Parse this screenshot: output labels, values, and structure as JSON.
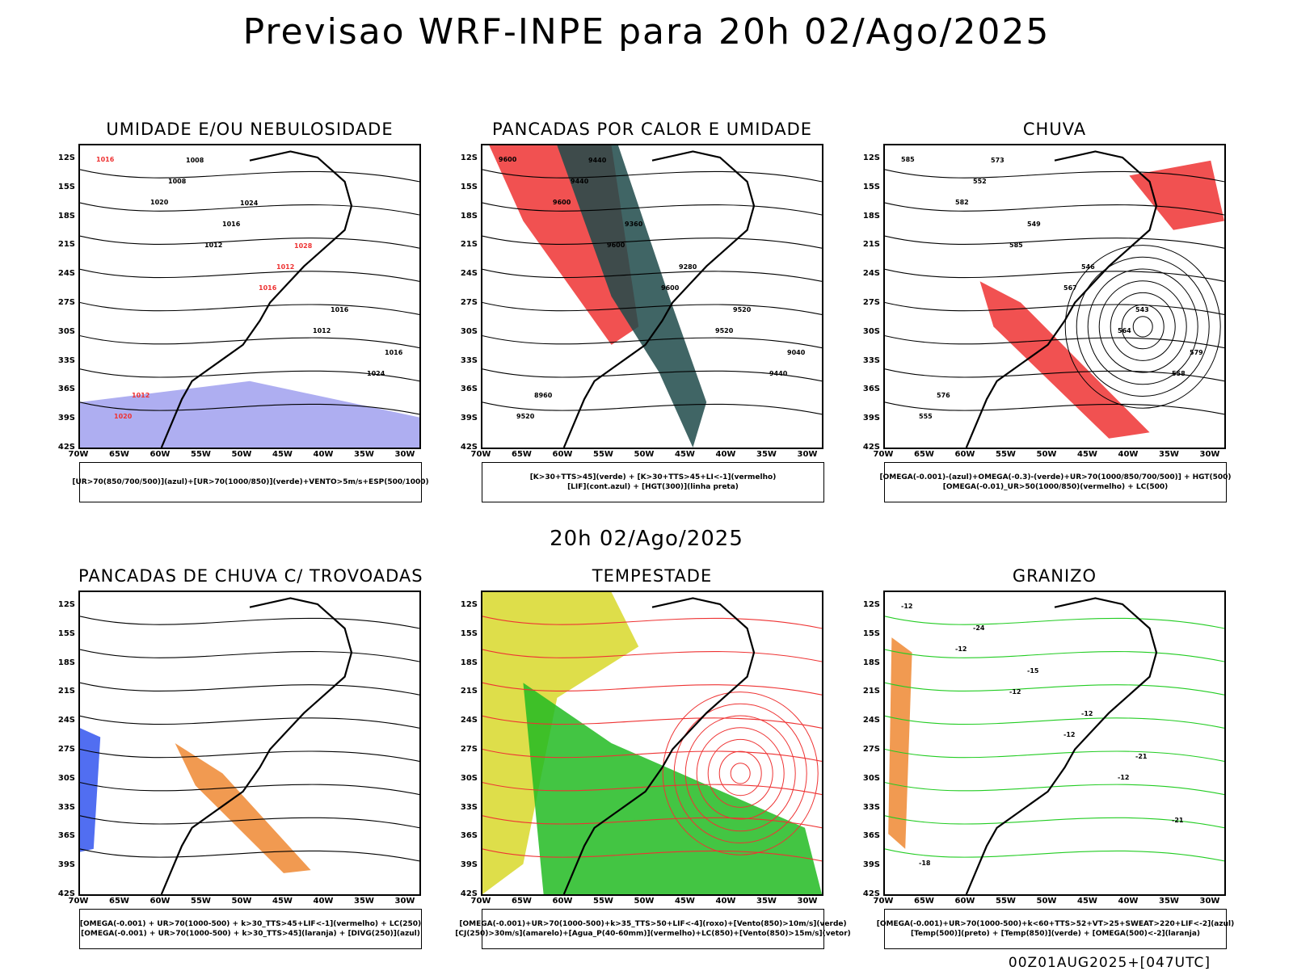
{
  "header": {
    "title": "Previsao WRF-INPE  para 20h 02/Ago/2025"
  },
  "middle_title": "20h 02/Ago/2025",
  "footer": "00Z01AUG2025+[047UTC]",
  "axes": {
    "lat_labels": [
      "12S",
      "15S",
      "18S",
      "21S",
      "24S",
      "27S",
      "30S",
      "33S",
      "36S",
      "39S",
      "42S"
    ],
    "lon_labels": [
      "70W",
      "65W",
      "60W",
      "55W",
      "50W",
      "45W",
      "40W",
      "35W",
      "30W"
    ]
  },
  "panels": [
    {
      "id": "umidade",
      "title": "UMIDADE E/OU NEBULOSIDADE",
      "legend": [
        "[UR>70(850/700/500)](azul)+[UR>70(1000/850)](verde)+VENTO>5m/s+ESP(500/1000)"
      ],
      "contour_labels": [
        "1016",
        "1020",
        "1012",
        "1016",
        "1012",
        "1024",
        "1020",
        "1008",
        "1016",
        "1012",
        "1016",
        "1016",
        "1012",
        "1008",
        "1024",
        "1028"
      ]
    },
    {
      "id": "pancadas-calor",
      "title": "PANCADAS POR CALOR E UMIDADE",
      "legend": [
        "[K>30+TTS>45](verde) + [K>30+TTS>45+LI<-1](vermelho)",
        "[LIF](cont.azul) + [HGT(300)](linha preta)"
      ],
      "contour_labels": [
        "9600",
        "9600",
        "9600",
        "9600",
        "9520",
        "9440",
        "9520",
        "9440",
        "9360",
        "9280",
        "9520",
        "9040",
        "8960",
        "9440"
      ]
    },
    {
      "id": "chuva",
      "title": "CHUVA",
      "legend": [
        "[OMEGA(-0.001)-(azul)+OMEGA(-0.3)-(verde)+UR>70(1000/850/700/500)] + HGT(500)",
        "[OMEGA(-0.01)_UR>50(1000/850)(vermelho) + LC(500)"
      ],
      "contour_labels": [
        "585",
        "582",
        "585",
        "567",
        "564",
        "558",
        "555",
        "552",
        "549",
        "546",
        "543",
        "579",
        "576",
        "573"
      ]
    },
    {
      "id": "pancadas-trovoadas",
      "title": "PANCADAS DE CHUVA C/ TROVOADAS",
      "legend": [
        "[OMEGA(-0.001) + UR>70(1000-500) + k>30_TTS>45+LIF<-1](vermelho) + LC(250)",
        "[OMEGA(-0.001) + UR>70(1000-500) + k>30_TTS>45](laranja) + [DIVG(250)](azul)"
      ],
      "contour_labels": []
    },
    {
      "id": "tempestade",
      "title": "TEMPESTADE",
      "legend": [
        "[OMEGA(-0.001)+UR>70(1000-500)+k>35_TTS>50+LIF<-4](roxo)+[Vento(850)>10m/s](verde)",
        "[CJ(250)>30m/s](amarelo)+[Agua_P(40-60mm)](vermelho)+LC(850)+[Vento(850)>15m/s](vetor)"
      ],
      "contour_labels": []
    },
    {
      "id": "granizo",
      "title": "GRANIZO",
      "legend": [
        "[OMEGA(-0.001)+UR>70(1000-500)+k<60+TTS>52+VT>25+SWEAT>220+LIF<-2](azul)",
        "[Temp(500)](preto) + [Temp(850)](verde) + [OMEGA(500)<-2](laranja)"
      ],
      "contour_labels": [
        "-12",
        "-12",
        "-12",
        "-12",
        "-12",
        "-21",
        "-18",
        "-24",
        "-15",
        "-12",
        "-21"
      ]
    }
  ],
  "colors": {
    "contour": "#000000",
    "humid_mid": "#6666ee",
    "humid_low": "#22cc22",
    "red": "#ee3333",
    "dark_teal": "#1f4a4a",
    "yellow": "#d8d82a",
    "green_fill": "#22bb22",
    "orange": "#ee8833",
    "blue": "#3355ee",
    "lavender": "#a0a0ee"
  }
}
